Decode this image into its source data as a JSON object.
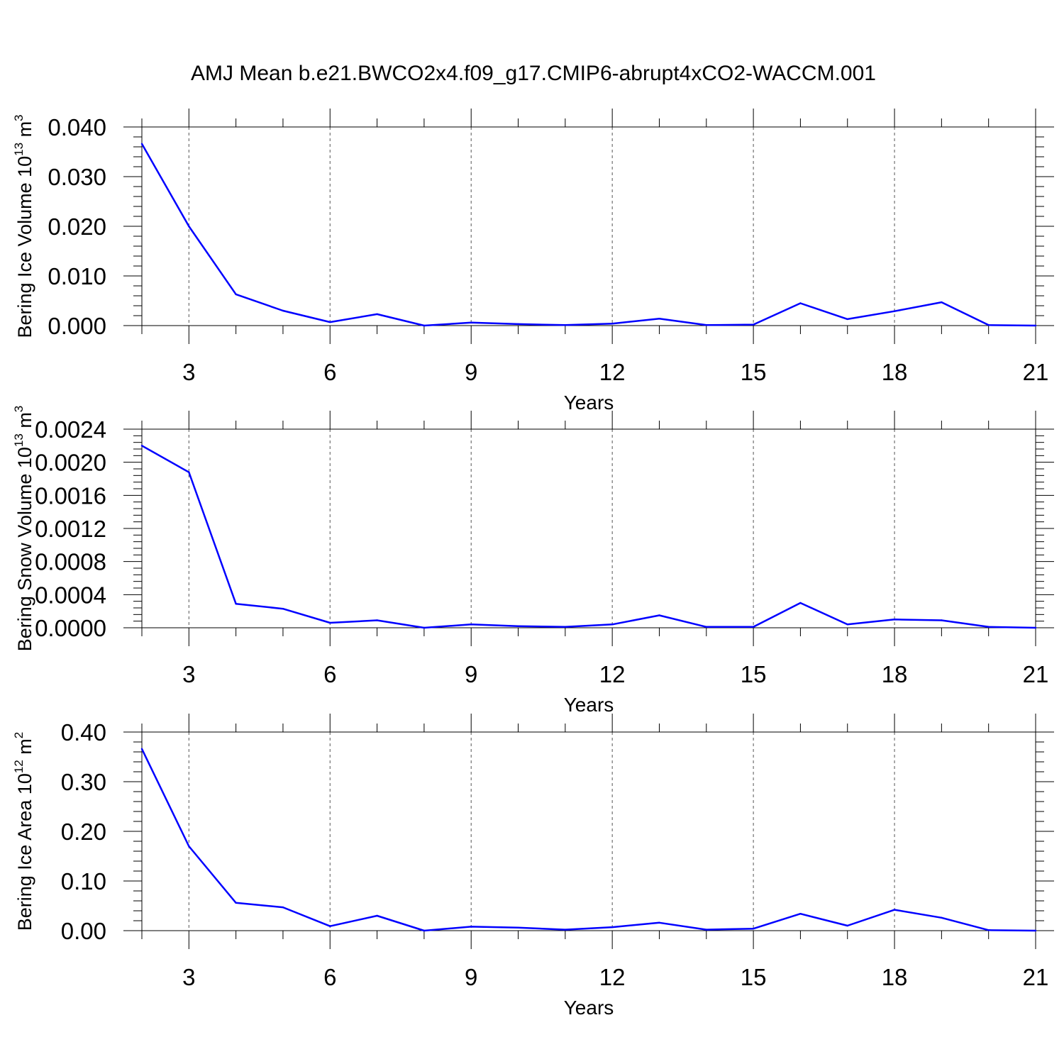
{
  "figure": {
    "title": "AMJ Mean b.e21.BWCO2x4.f09_g17.CMIP6-abrupt4xCO2-WACCM.001",
    "line_color": "#0000ff"
  },
  "chart_data": [
    {
      "type": "line",
      "xlabel": "Years",
      "ylabel": {
        "text": "Bering Ice Volume 10",
        "sup1": "13",
        "mid": " m",
        "sup2": "3"
      },
      "xlim": [
        2,
        21
      ],
      "ylim": [
        0,
        0.04
      ],
      "x_ticks": [
        3,
        6,
        9,
        12,
        15,
        18,
        21
      ],
      "y_ticks": [
        "0.000",
        "0.010",
        "0.020",
        "0.030",
        "0.040"
      ],
      "y_tick_values": [
        0,
        0.01,
        0.02,
        0.03,
        0.04
      ],
      "grid": "dashed vertical at major x ticks",
      "x": [
        2,
        3,
        4,
        5,
        6,
        7,
        8,
        9,
        10,
        11,
        12,
        13,
        14,
        15,
        16,
        17,
        18,
        19,
        20,
        21
      ],
      "values": [
        0.0366,
        0.02,
        0.0063,
        0.003,
        0.0007,
        0.0023,
        0.0,
        0.0006,
        0.0003,
        0.0001,
        0.0004,
        0.0014,
        0.0001,
        0.0002,
        0.0045,
        0.0013,
        0.0029,
        0.0047,
        0.0001,
        0.0
      ]
    },
    {
      "type": "line",
      "xlabel": "Years",
      "ylabel": {
        "text": "Bering Snow Volume 10",
        "sup1": "13",
        "mid": " m",
        "sup2": "3"
      },
      "xlim": [
        2,
        21
      ],
      "ylim": [
        0,
        0.0024
      ],
      "x_ticks": [
        3,
        6,
        9,
        12,
        15,
        18,
        21
      ],
      "y_ticks": [
        "0.0000",
        "0.0004",
        "0.0008",
        "0.0012",
        "0.0016",
        "0.0020",
        "0.0024"
      ],
      "y_tick_values": [
        0,
        0.0004,
        0.0008,
        0.0012,
        0.0016,
        0.002,
        0.0024
      ],
      "grid": "dashed vertical at major x ticks",
      "x": [
        2,
        3,
        4,
        5,
        6,
        7,
        8,
        9,
        10,
        11,
        12,
        13,
        14,
        15,
        16,
        17,
        18,
        19,
        20,
        21
      ],
      "values": [
        0.0022,
        0.00188,
        0.00029,
        0.00023,
        6e-05,
        9e-05,
        0.0,
        4e-05,
        2e-05,
        1e-05,
        4e-05,
        0.00015,
        1e-05,
        1e-05,
        0.0003,
        4e-05,
        0.0001,
        9e-05,
        1e-05,
        0.0
      ]
    },
    {
      "type": "line",
      "xlabel": "Years",
      "ylabel": {
        "text": "Bering Ice Area 10",
        "sup1": "12",
        "mid": " m",
        "sup2": "2"
      },
      "xlim": [
        2,
        21
      ],
      "ylim": [
        0,
        0.4
      ],
      "x_ticks": [
        3,
        6,
        9,
        12,
        15,
        18,
        21
      ],
      "y_ticks": [
        "0.00",
        "0.10",
        "0.20",
        "0.30",
        "0.40"
      ],
      "y_tick_values": [
        0,
        0.1,
        0.2,
        0.3,
        0.4
      ],
      "grid": "dashed vertical at major x ticks",
      "x": [
        2,
        3,
        4,
        5,
        6,
        7,
        8,
        9,
        10,
        11,
        12,
        13,
        14,
        15,
        16,
        17,
        18,
        19,
        20,
        21
      ],
      "values": [
        0.366,
        0.17,
        0.056,
        0.047,
        0.009,
        0.03,
        0.0,
        0.008,
        0.006,
        0.002,
        0.007,
        0.016,
        0.002,
        0.004,
        0.034,
        0.01,
        0.042,
        0.026,
        0.001,
        0.0
      ]
    }
  ]
}
